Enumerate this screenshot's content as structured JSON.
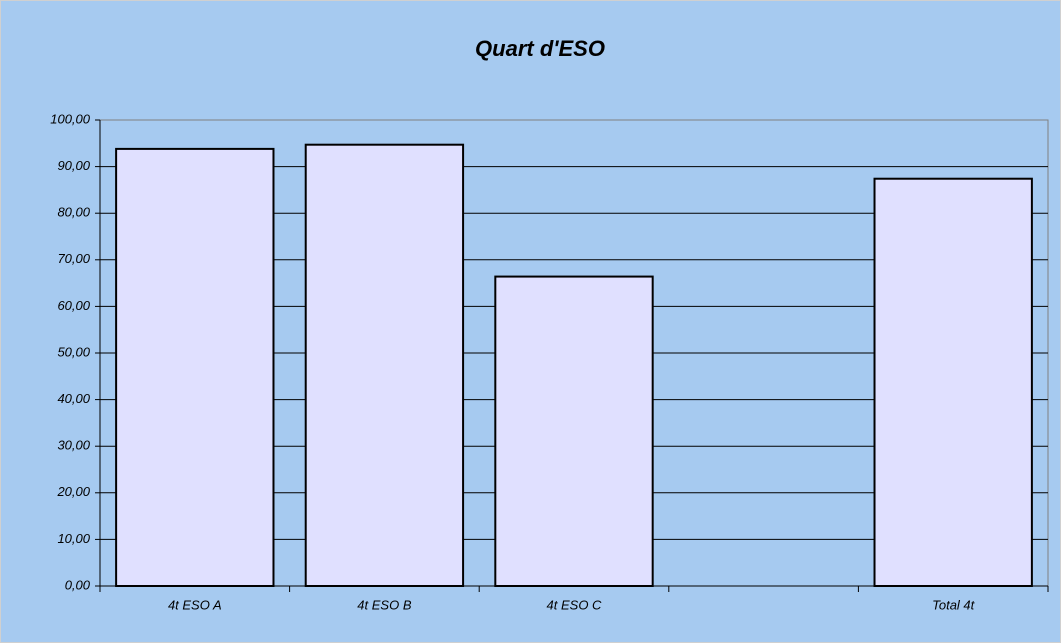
{
  "chart_data": {
    "type": "bar",
    "title": "Quart d'ESO",
    "categories": [
      "4t ESO A",
      "4t ESO B",
      "4t ESO C",
      null,
      "Total 4t"
    ],
    "values": [
      93.8,
      94.7,
      66.4,
      null,
      87.4
    ],
    "color": "#e0e0ff",
    "ylim": [
      0,
      100
    ],
    "yticks": [
      {
        "value": 0,
        "label": "0,00"
      },
      {
        "value": 10,
        "label": "10,00"
      },
      {
        "value": 20,
        "label": "20,00"
      },
      {
        "value": 30,
        "label": "30,00"
      },
      {
        "value": 40,
        "label": "40,00"
      },
      {
        "value": 50,
        "label": "50,00"
      },
      {
        "value": 60,
        "label": "60,00"
      },
      {
        "value": 70,
        "label": "70,00"
      },
      {
        "value": 80,
        "label": "80,00"
      },
      {
        "value": 90,
        "label": "90,00"
      },
      {
        "value": 100,
        "label": "100,00"
      }
    ],
    "grid": true
  }
}
